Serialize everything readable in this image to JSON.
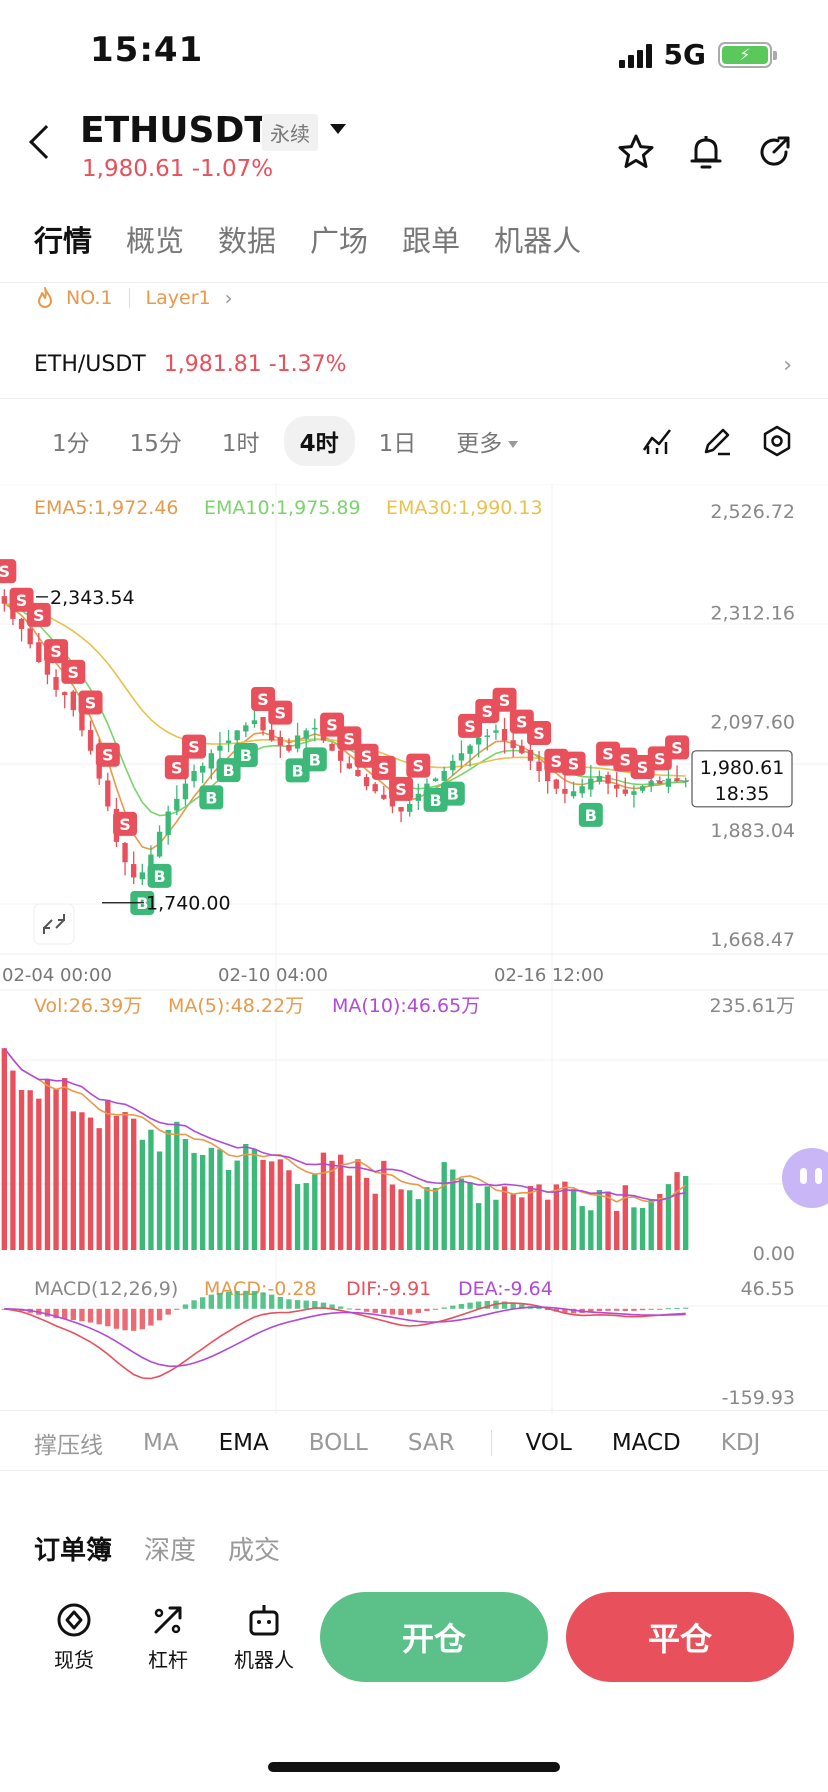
{
  "status": {
    "time": "15:41",
    "network": "5G"
  },
  "header": {
    "symbol": "ETHUSDT",
    "contract_badge": "永续",
    "price": "1,980.61",
    "change": "-1.07%"
  },
  "tabs": [
    "行情",
    "概览",
    "数据",
    "广场",
    "跟单",
    "机器人"
  ],
  "tags": {
    "rank": "NO.1",
    "category": "Layer1"
  },
  "spot": {
    "pair": "ETH/USDT",
    "price": "1,981.81",
    "change": "-1.37%"
  },
  "timeframes": [
    "1分",
    "15分",
    "1时",
    "4时",
    "1日",
    "更多"
  ],
  "active_timeframe": "4时",
  "indicator_tabs_main": [
    "撑压线",
    "MA",
    "EMA",
    "BOLL",
    "SAR"
  ],
  "indicator_tabs_sub": [
    "VOL",
    "MACD",
    "KDJ"
  ],
  "order_tabs": [
    "订单簿",
    "深度",
    "成交"
  ],
  "bottom_nav": {
    "spot": "现货",
    "leverage": "杠杆",
    "bot": "机器人"
  },
  "buttons": {
    "open": "开仓",
    "close": "平仓"
  },
  "colors": {
    "up": "#3cb878",
    "down": "#e8505b",
    "ema5": "#e8994a",
    "ema10": "#7bd46b",
    "ema30": "#e8c24a"
  },
  "chart_data": {
    "type": "candlestick",
    "ema_legend": [
      {
        "label": "EMA5:1,972.46",
        "color": "#e8994a"
      },
      {
        "label": "EMA10:1,975.89",
        "color": "#7bd46b"
      },
      {
        "label": "EMA30:1,990.13",
        "color": "#e8c24a"
      }
    ],
    "price_axis": [
      "2,526.72",
      "2,312.16",
      "2,097.60",
      "1,883.04",
      "1,668.47"
    ],
    "ylim": [
      1668.47,
      2526.72
    ],
    "x_ticks": [
      "02-04 00:00",
      "02-10 04:00",
      "02-16 12:00"
    ],
    "high_marker": "2,343.54",
    "low_marker": "1,740.00",
    "last_price": "1,980.61",
    "countdown": "18:35",
    "close_series": [
      2330,
      2300,
      2280,
      2250,
      2215,
      2190,
      2160,
      2150,
      2120,
      2080,
      2040,
      1985,
      1930,
      1860,
      1820,
      1790,
      1800,
      1835,
      1880,
      1920,
      1945,
      1975,
      2000,
      2010,
      2035,
      2050,
      2060,
      2080,
      2090,
      2100,
      2080,
      2060,
      2050,
      2040,
      2070,
      2080,
      2085,
      2060,
      2040,
      2020,
      2005,
      1990,
      1970,
      1960,
      1945,
      1930,
      1920,
      1935,
      1955,
      1975,
      1985,
      2000,
      2020,
      2035,
      2050,
      2065,
      2070,
      2080,
      2060,
      2045,
      2035,
      2020,
      2000,
      1980,
      1965,
      1955,
      1960,
      1970,
      1985,
      1990,
      1975,
      1965,
      1955,
      1960,
      1970,
      1980,
      1975,
      1985,
      1980,
      1981
    ],
    "volume": {
      "vol_label": "Vol:26.39万",
      "ma5_label": "MA(5):48.22万",
      "ma10_label": "MA(10):46.65万",
      "axis_top": "235.61万",
      "axis_bottom": "0.00",
      "ymax": 235.61
    },
    "macd": {
      "label": "MACD(12,26,9)",
      "macd_label": "MACD:-0.28",
      "dif_label": "DIF:-9.91",
      "dea_label": "DEA:-9.64",
      "axis_top": "46.55",
      "axis_bottom": "-159.93",
      "ylim": [
        -159.93,
        46.55
      ]
    }
  }
}
